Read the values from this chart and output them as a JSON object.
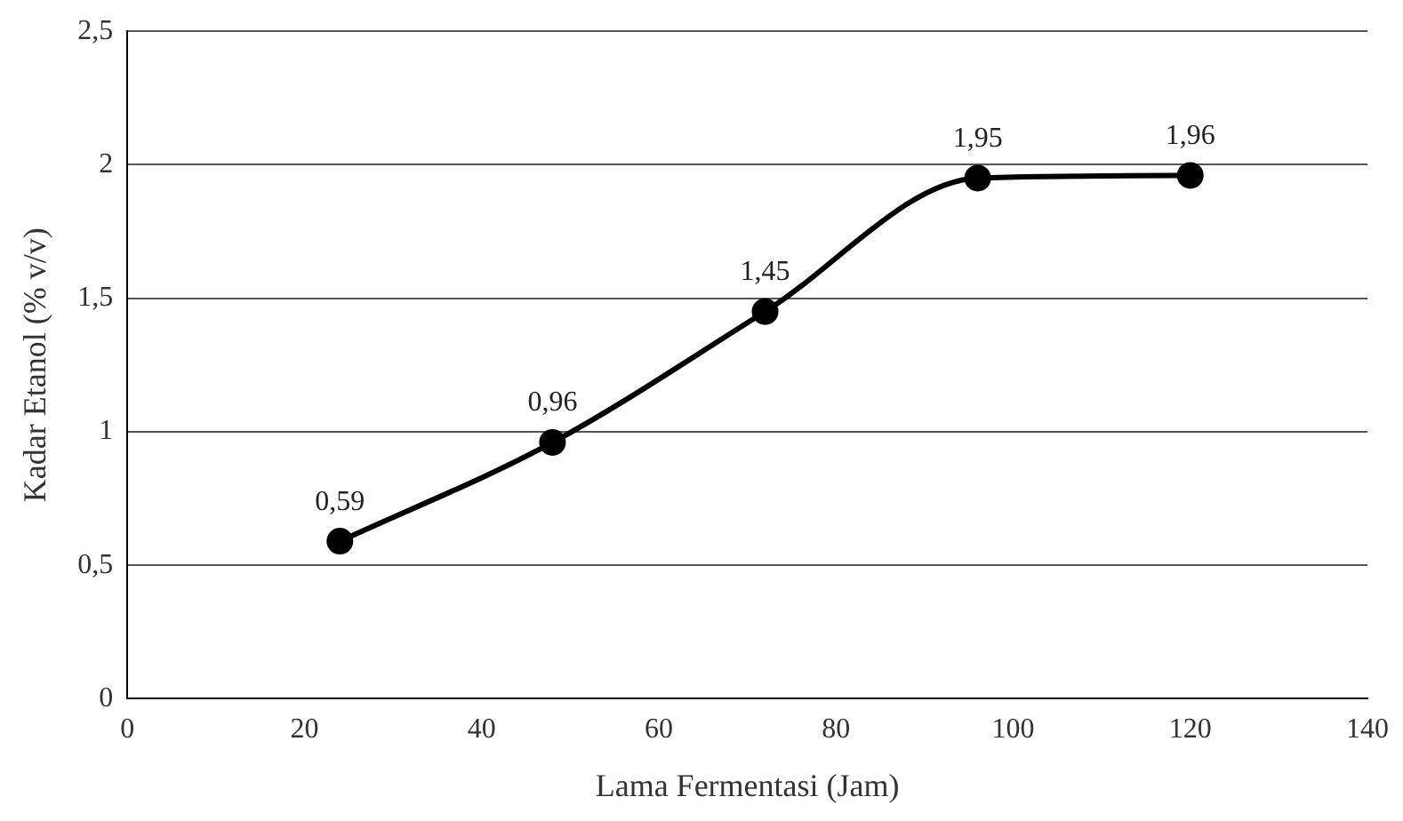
{
  "chart_data": {
    "type": "line",
    "xlabel": "Lama Fermentasi (Jam)",
    "ylabel": "Kadar Etanol (% v/v)",
    "x": [
      24,
      48,
      72,
      96,
      120
    ],
    "series": [
      {
        "color": "#000000",
        "values": [
          0.59,
          0.96,
          1.45,
          1.95,
          1.96
        ],
        "value_labels": [
          "0,59",
          "0,96",
          "1,45",
          "1,95",
          "1,96"
        ]
      }
    ],
    "xlim": [
      0,
      140
    ],
    "xticks": [
      0,
      20,
      40,
      60,
      80,
      100,
      120,
      140
    ],
    "ylim": [
      0,
      2.5
    ],
    "yticks": [
      0,
      {
        "value": 0.5,
        "label": "0,5"
      },
      1,
      {
        "value": 1.5,
        "label": "1,5"
      },
      2,
      {
        "value": 2.5,
        "label": "2,5"
      }
    ],
    "grid": "y",
    "legend": false,
    "marker": "circle",
    "line_style": "solid"
  }
}
